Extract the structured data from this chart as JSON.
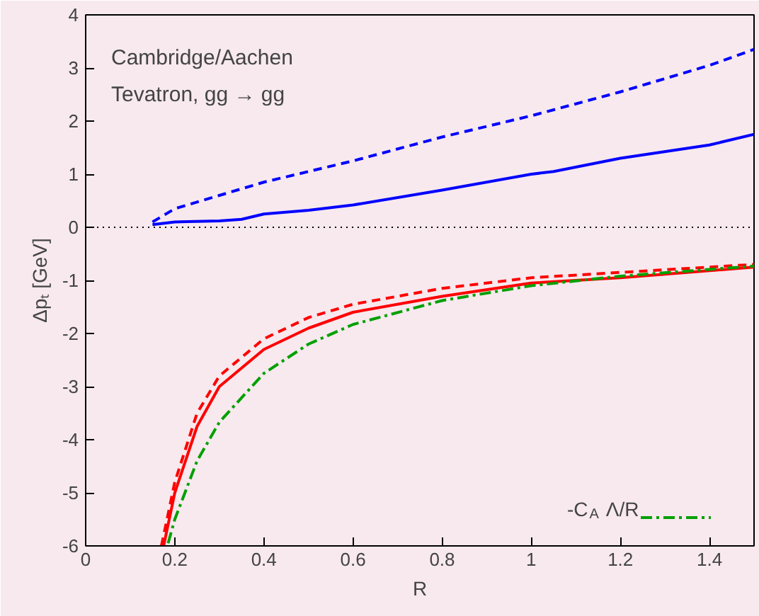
{
  "chart_data": {
    "type": "line",
    "xlabel": "R",
    "ylabel": "Δpₜ [GeV]",
    "xlim": [
      0,
      1.5
    ],
    "ylim": [
      -6,
      4
    ],
    "xticks": [
      0,
      0.2,
      0.4,
      0.6,
      0.8,
      1,
      1.2,
      1.4
    ],
    "yticks": [
      -6,
      -5,
      -4,
      -3,
      -2,
      -1,
      0,
      1,
      2,
      3,
      4
    ],
    "annotations": [
      "Cambridge/Aachen",
      "Tevatron, gg → gg"
    ],
    "ref_lines": [
      {
        "axis": "y",
        "value": 0,
        "color": "#000000",
        "line_style": "dotted"
      }
    ],
    "legend": "bottom right",
    "grid": false,
    "series": [
      {
        "color": "#0000ff",
        "line_style": "dashed",
        "x": [
          0.15,
          0.2,
          0.3,
          0.4,
          0.5,
          0.6,
          0.8,
          1.0,
          1.2,
          1.4,
          1.5
        ],
        "values": [
          0.1,
          0.35,
          0.6,
          0.85,
          1.05,
          1.25,
          1.7,
          2.1,
          2.55,
          3.05,
          3.35
        ]
      },
      {
        "color": "#0000ff",
        "line_style": "solid",
        "x": [
          0.15,
          0.2,
          0.3,
          0.35,
          0.4,
          0.5,
          0.6,
          0.8,
          1.0,
          1.05,
          1.2,
          1.4,
          1.5
        ],
        "values": [
          0.05,
          0.1,
          0.12,
          0.15,
          0.25,
          0.32,
          0.42,
          0.7,
          1.0,
          1.05,
          1.3,
          1.55,
          1.75
        ]
      },
      {
        "color": "#ff0000",
        "line_style": "dashed",
        "x": [
          0.17,
          0.2,
          0.25,
          0.3,
          0.4,
          0.5,
          0.6,
          0.8,
          1.0,
          1.2,
          1.5
        ],
        "values": [
          -6,
          -4.8,
          -3.5,
          -2.8,
          -2.1,
          -1.7,
          -1.45,
          -1.15,
          -0.95,
          -0.85,
          -0.7
        ]
      },
      {
        "color": "#ff0000",
        "line_style": "solid",
        "x": [
          0.175,
          0.2,
          0.25,
          0.3,
          0.4,
          0.5,
          0.6,
          0.8,
          1.0,
          1.2,
          1.5
        ],
        "values": [
          -6,
          -5.0,
          -3.75,
          -3.0,
          -2.3,
          -1.9,
          -1.6,
          -1.3,
          -1.05,
          -0.95,
          -0.75
        ]
      },
      {
        "name": "-C$_{A}$ Λ/R",
        "color": "#00a000",
        "line_style": "dashdot",
        "x": [
          0.185,
          0.2,
          0.25,
          0.3,
          0.4,
          0.5,
          0.6,
          0.8,
          1.0,
          1.2,
          1.5
        ],
        "values": [
          -5.95,
          -5.5,
          -4.4,
          -3.67,
          -2.75,
          -2.2,
          -1.83,
          -1.38,
          -1.1,
          -0.92,
          -0.73
        ]
      }
    ]
  }
}
